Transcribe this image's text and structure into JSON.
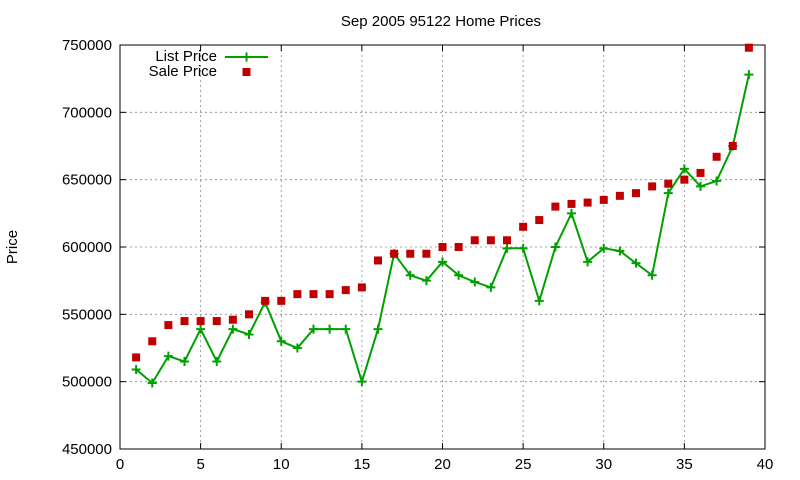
{
  "chart_data": {
    "type": "line",
    "title": "Sep 2005 95122 Home Prices",
    "xlabel": "",
    "ylabel": "Price",
    "xlim": [
      0,
      40
    ],
    "ylim": [
      450000,
      750000
    ],
    "x_ticks": [
      0,
      5,
      10,
      15,
      20,
      25,
      30,
      35,
      40
    ],
    "y_ticks": [
      450000,
      500000,
      550000,
      600000,
      650000,
      700000,
      750000
    ],
    "grid": true,
    "legend_position": "top-left",
    "series": [
      {
        "name": "List Price",
        "style": "linespoints",
        "marker": "plus",
        "color": "#00a000",
        "x": [
          1,
          2,
          3,
          4,
          5,
          6,
          7,
          8,
          9,
          10,
          11,
          12,
          13,
          14,
          15,
          16,
          17,
          18,
          19,
          20,
          21,
          22,
          23,
          24,
          25,
          26,
          27,
          28,
          29,
          30,
          31,
          32,
          33,
          34,
          35,
          36,
          37,
          38,
          39
        ],
        "values": [
          509000,
          499000,
          519000,
          515000,
          539000,
          515000,
          539000,
          535000,
          559000,
          530000,
          525000,
          539000,
          539000,
          539000,
          500000,
          539000,
          595000,
          579000,
          575000,
          589000,
          579000,
          574000,
          570000,
          599000,
          599000,
          560000,
          600000,
          625000,
          589000,
          599000,
          597000,
          588000,
          579000,
          640000,
          658000,
          645000,
          649000,
          675000,
          728000
        ]
      },
      {
        "name": "Sale Price",
        "style": "points",
        "marker": "square",
        "color": "#c00000",
        "x": [
          1,
          2,
          3,
          4,
          5,
          6,
          7,
          8,
          9,
          10,
          11,
          12,
          13,
          14,
          15,
          16,
          17,
          18,
          19,
          20,
          21,
          22,
          23,
          24,
          25,
          26,
          27,
          28,
          29,
          30,
          31,
          32,
          33,
          34,
          35,
          36,
          37,
          38,
          39
        ],
        "values": [
          518000,
          530000,
          542000,
          545000,
          545000,
          545000,
          546000,
          550000,
          560000,
          560000,
          565000,
          565000,
          565000,
          568000,
          570000,
          590000,
          595000,
          595000,
          595000,
          600000,
          600000,
          605000,
          605000,
          605000,
          615000,
          620000,
          630000,
          632000,
          633000,
          635000,
          638000,
          640000,
          645000,
          647000,
          650000,
          655000,
          667000,
          675000,
          748000
        ]
      }
    ]
  }
}
